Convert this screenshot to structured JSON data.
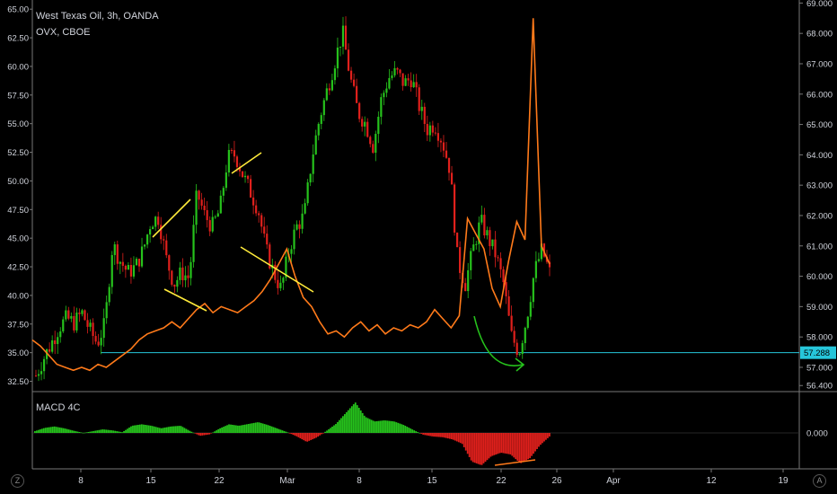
{
  "header": {
    "symbol": "West Texas Oil, 3h, OANDA",
    "overlay": "OVX, CBOE",
    "macd_label": "MACD 4C"
  },
  "price_badge": "57.288",
  "macd_zero_label": "0.000",
  "corner_icons": {
    "left": "Z",
    "right": "A"
  },
  "colors": {
    "background": "#000000",
    "candle_up": "#26c21c",
    "candle_down": "#e0201c",
    "ovx_line": "#ff7a1a",
    "horizontal_line": "#26c6da",
    "trendlines": "#ffeb3b",
    "arrow": "#26c21c",
    "axis_text": "#d1d4dc"
  },
  "chart_data": {
    "type": "candlestick",
    "title": "West Texas Oil, 3h, OANDA",
    "x_ticks": [
      "8",
      "15",
      "22",
      "Mar",
      "8",
      "15",
      "22",
      "26",
      "Apr",
      "12",
      "19"
    ],
    "left_axis": {
      "label": "",
      "ticks": [
        "65.00",
        "62.50",
        "60.00",
        "57.50",
        "55.00",
        "52.50",
        "50.00",
        "47.50",
        "45.00",
        "42.50",
        "40.00",
        "37.50",
        "35.00",
        "32.50"
      ],
      "range": [
        31.6,
        65.8
      ]
    },
    "right_axis": {
      "label": "",
      "ticks": [
        "69.000",
        "68.000",
        "67.000",
        "66.000",
        "65.000",
        "64.000",
        "63.000",
        "62.000",
        "61.000",
        "60.000",
        "59.000",
        "58.000",
        "57.000",
        "56.400"
      ],
      "range": [
        56.2,
        69.1
      ]
    },
    "wti_close_path": [
      33.0,
      34.5,
      35.8,
      37.2,
      38.0,
      37.6,
      38.5,
      37.0,
      35.8,
      37.5,
      44.5,
      43.0,
      42.0,
      42.5,
      44.0,
      46.5,
      46.8,
      43.2,
      41.0,
      42.0,
      41.5,
      49.0,
      47.0,
      46.0,
      47.5,
      52.0,
      52.3,
      50.5,
      49.0,
      47.5,
      44.0,
      42.0,
      40.5,
      44.0,
      46.0,
      47.0,
      52.0,
      55.5,
      58.0,
      60.5,
      63.0,
      59.0,
      56.0,
      55.0,
      53.0,
      57.0,
      59.0,
      59.5,
      58.5,
      59.0,
      56.5,
      54.5,
      55.0,
      53.5,
      51.0,
      43.0,
      41.0,
      44.0,
      46.5,
      45.0,
      43.5,
      41.0,
      36.5,
      35.0,
      38.0,
      42.0,
      44.0,
      42.0
    ],
    "ovx_series": {
      "name": "OVX",
      "values": [
        57.9,
        57.7,
        57.4,
        57.1,
        57.0,
        56.9,
        57.0,
        56.9,
        57.1,
        57.0,
        57.2,
        57.4,
        57.6,
        57.9,
        58.1,
        58.2,
        58.3,
        58.5,
        58.3,
        58.6,
        58.9,
        59.1,
        58.8,
        59.0,
        58.9,
        58.8,
        59.0,
        59.2,
        59.5,
        59.9,
        60.4,
        60.9,
        60.0,
        59.3,
        59.0,
        58.5,
        58.1,
        58.2,
        58.0,
        58.3,
        58.5,
        58.2,
        58.4,
        58.1,
        58.3,
        58.2,
        58.4,
        58.3,
        58.5,
        58.9,
        58.6,
        58.3,
        58.7,
        61.9,
        61.4,
        60.9,
        59.6,
        59.0,
        60.5,
        61.8,
        61.2,
        68.5,
        61.0,
        60.4
      ]
    },
    "reference_line": {
      "value": 35.0
    },
    "macd_histogram": [
      0.05,
      0.14,
      0.18,
      0.13,
      0.06,
      0.0,
      0.05,
      0.1,
      0.07,
      0.02,
      0.2,
      0.24,
      0.2,
      0.13,
      0.18,
      0.2,
      0.05,
      -0.08,
      -0.04,
      0.12,
      0.24,
      0.2,
      0.25,
      0.3,
      0.22,
      0.12,
      0.02,
      -0.1,
      -0.25,
      -0.13,
      0.05,
      0.25,
      0.55,
      0.85,
      0.45,
      0.32,
      0.35,
      0.32,
      0.22,
      0.08,
      -0.05,
      -0.1,
      -0.12,
      -0.18,
      -0.3,
      -0.8,
      -0.9,
      -0.65,
      -0.55,
      -0.6,
      -0.85,
      -0.7,
      -0.35,
      -0.1
    ]
  }
}
